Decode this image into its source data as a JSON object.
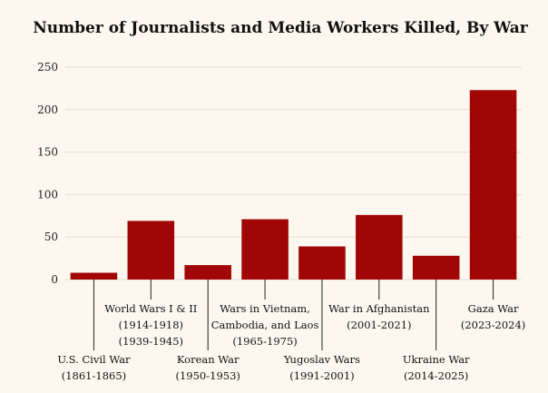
{
  "chart_data": {
    "type": "bar",
    "title": "Number of Journalists and Media Workers Killed, By War",
    "xlabel": "",
    "ylabel": "",
    "ylim": [
      0,
      250
    ],
    "yticks": [
      0,
      50,
      100,
      150,
      200,
      250
    ],
    "grid": true,
    "categories": [
      {
        "lines": [
          "U.S. Civil War",
          "(1861-1865)"
        ],
        "label_row": "low"
      },
      {
        "lines": [
          "World Wars I & II",
          "(1914-1918)",
          "(1939-1945)"
        ],
        "label_row": "high"
      },
      {
        "lines": [
          "Korean War",
          "(1950-1953)"
        ],
        "label_row": "low"
      },
      {
        "lines": [
          "Wars in Vietnam,",
          "Cambodia, and Laos",
          "(1965-1975)"
        ],
        "label_row": "high"
      },
      {
        "lines": [
          "Yugoslav Wars",
          "(1991-2001)"
        ],
        "label_row": "low"
      },
      {
        "lines": [
          "War in Afghanistan",
          "(2001-2021)"
        ],
        "label_row": "high"
      },
      {
        "lines": [
          "Ukraine War",
          "(2014-2025)"
        ],
        "label_row": "low"
      },
      {
        "lines": [
          "Gaza War",
          "(2023-2024)"
        ],
        "label_row": "high"
      }
    ],
    "values": [
      8,
      69,
      17,
      71,
      39,
      76,
      28,
      223
    ],
    "bar_color": "#a00606"
  }
}
